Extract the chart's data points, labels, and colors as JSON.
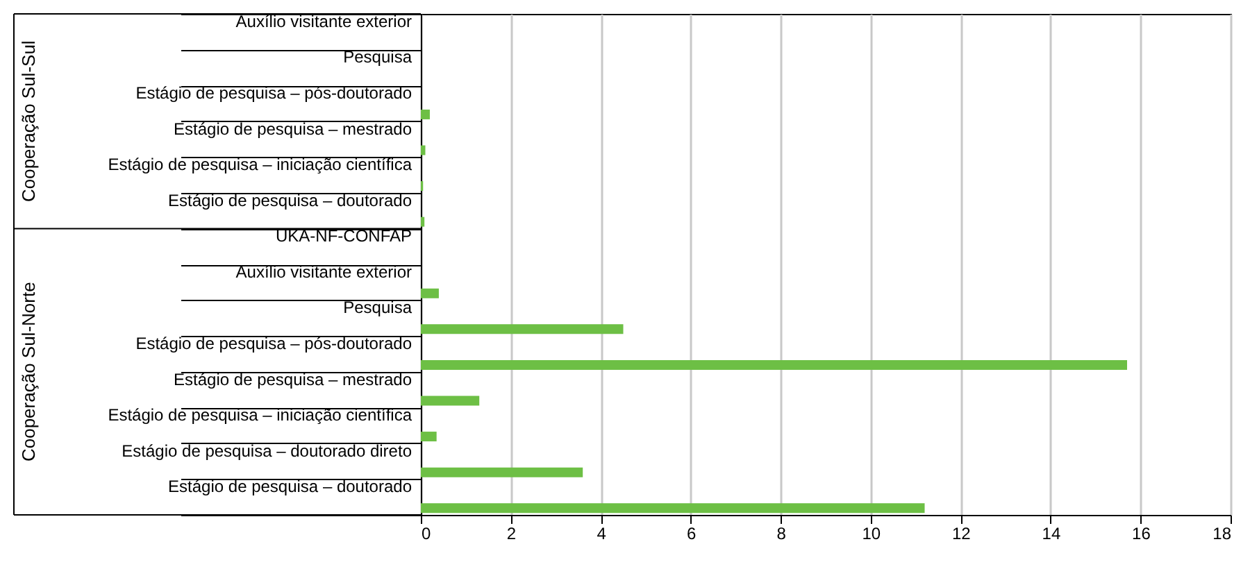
{
  "chart_data": {
    "type": "bar",
    "orientation": "horizontal",
    "categories": [
      "Auxílio visitante exterior",
      "Pesquisa",
      "Estágio de pesquisa – pós-doutorado",
      "Estágio de pesquisa – mestrado",
      "Estágio de pesquisa – iniciação científica",
      "Estágio de pesquisa – doutorado",
      "UKA-NF-CONFAP",
      "Auxílio visitante exterior",
      "Pesquisa",
      "Estágio de pesquisa – pós-doutorado",
      "Estágio de pesquisa – mestrado",
      "Estágio de pesquisa – iniciação científica",
      "Estágio de pesquisa – doutorado direto",
      "Estágio de pesquisa – doutorado"
    ],
    "values": [
      0,
      0,
      0.2,
      0.1,
      0.05,
      0.08,
      0,
      0.4,
      4.5,
      15.7,
      1.3,
      0.35,
      3.6,
      11.2
    ],
    "color": "#6dbf45",
    "xlim": [
      0,
      18
    ],
    "xticks": [
      0,
      2,
      4,
      6,
      8,
      10,
      12,
      14,
      16,
      18
    ],
    "grid": "x",
    "annotations": [
      "Cooperação Sul-Sul",
      "Cooperação Sul-Norte"
    ]
  }
}
